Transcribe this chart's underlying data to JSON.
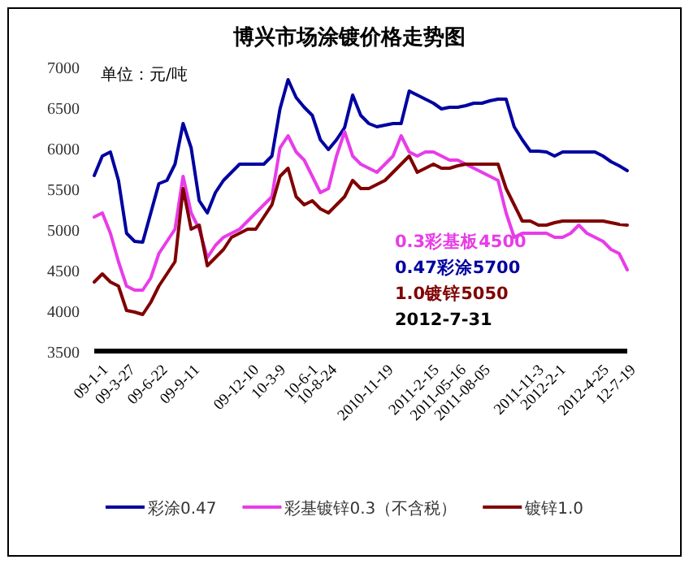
{
  "chart_data": {
    "type": "line",
    "title": "博兴市场涂镀价格走势图",
    "ylabel": "单位：元/吨",
    "categories": [
      "09-1-1",
      null,
      null,
      "09-3-27",
      null,
      null,
      null,
      "09-6-22",
      null,
      null,
      null,
      "09-9-11",
      null,
      null,
      null,
      null,
      null,
      null,
      "09-12-10",
      null,
      null,
      null,
      "10-3-9",
      null,
      null,
      null,
      "10-6-1",
      null,
      "10-8-24",
      null,
      null,
      null,
      null,
      null,
      "2010-11-19",
      null,
      null,
      null,
      null,
      null,
      "2011-2-15",
      null,
      null,
      "2011-05-16",
      null,
      null,
      "2011-08-05",
      null,
      null,
      null,
      null,
      null,
      null,
      "2011-11-3",
      null,
      null,
      "2012-2-1",
      null,
      null,
      null,
      null,
      "2012-4-25",
      null,
      null,
      null,
      "12-7-19",
      null
    ],
    "series": [
      {
        "name": "彩涂0.47",
        "color": "#0000a0",
        "values": [
          5660,
          5900,
          5950,
          5600,
          4950,
          4850,
          4840,
          5200,
          5560,
          5600,
          5800,
          6300,
          6000,
          5350,
          5200,
          5450,
          5600,
          5700,
          5800,
          5800,
          5800,
          5800,
          5900,
          6480,
          6840,
          6620,
          6500,
          6400,
          6100,
          5980,
          6100,
          6250,
          6650,
          6400,
          6300,
          6260,
          6280,
          6300,
          6300,
          6700,
          6650,
          6600,
          6550,
          6480,
          6500,
          6500,
          6520,
          6550,
          6550,
          6580,
          6600,
          6600,
          6260,
          6100,
          5960,
          5960,
          5950,
          5900,
          5950,
          5950,
          5950,
          5950,
          5950,
          5900,
          5830,
          5780,
          5720
        ]
      },
      {
        "name": "彩基镀锌0.3（不含税）",
        "color": "#e83ce8",
        "values": [
          5150,
          5200,
          4950,
          4600,
          4300,
          4250,
          4250,
          4400,
          4700,
          4850,
          5000,
          5650,
          5200,
          5000,
          4650,
          4800,
          4900,
          4950,
          5000,
          5100,
          5200,
          5300,
          5400,
          6000,
          6150,
          5950,
          5850,
          5650,
          5450,
          5500,
          5900,
          6200,
          5900,
          5800,
          5750,
          5700,
          5800,
          5900,
          6150,
          5950,
          5900,
          5950,
          5950,
          5900,
          5850,
          5850,
          5800,
          5750,
          5700,
          5650,
          5600,
          5200,
          4900,
          4950,
          4950,
          4950,
          4950,
          4900,
          4900,
          4950,
          5050,
          4950,
          4900,
          4850,
          4750,
          4700,
          4500
        ]
      },
      {
        "name": "镀锌1.0",
        "color": "#800000",
        "values": [
          4350,
          4450,
          4350,
          4300,
          4000,
          3980,
          3950,
          4100,
          4300,
          4450,
          4600,
          5500,
          5000,
          5050,
          4550,
          4650,
          4750,
          4900,
          4950,
          5000,
          5000,
          5150,
          5300,
          5650,
          5750,
          5400,
          5300,
          5350,
          5250,
          5200,
          5300,
          5400,
          5600,
          5500,
          5500,
          5550,
          5600,
          5700,
          5800,
          5900,
          5700,
          5750,
          5800,
          5750,
          5750,
          5780,
          5800,
          5800,
          5800,
          5800,
          5800,
          5500,
          5300,
          5100,
          5100,
          5050,
          5050,
          5080,
          5100,
          5100,
          5100,
          5100,
          5100,
          5100,
          5080,
          5060,
          5050
        ]
      }
    ],
    "annotations": [
      "0.3彩基板4500",
      "0.47彩涂5700",
      "1.0镀锌5050",
      "2012-7-31"
    ],
    "ylim": [
      3500,
      7000
    ],
    "yticks": [
      3500,
      4000,
      4500,
      5000,
      5500,
      6000,
      6500,
      7000
    ],
    "grid": false,
    "legend": "bottom",
    "marker": "none",
    "line_style": "solid"
  }
}
